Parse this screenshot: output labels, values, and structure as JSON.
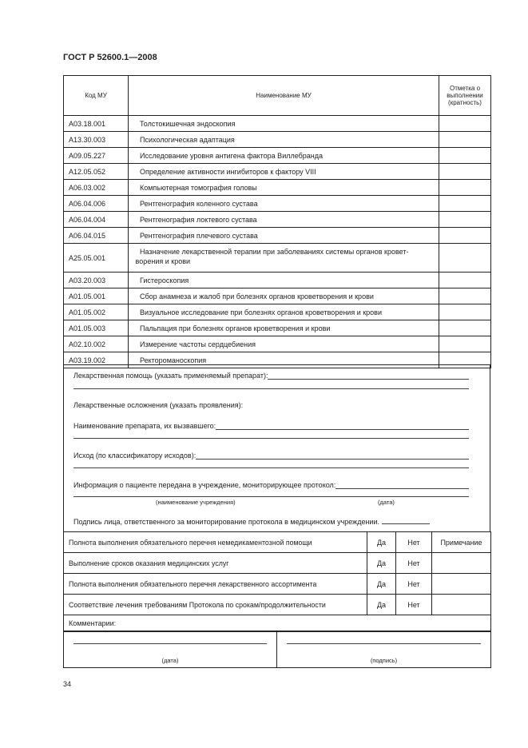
{
  "header": {
    "title": "ГОСТ Р 52600.1—2008"
  },
  "mu_table": {
    "columns": [
      "Код МУ",
      "Наименование МУ",
      "Отметка о выполнении (кратность)"
    ],
    "rows": [
      {
        "code": "A03.18.001",
        "name": "Толстокишечная эндоскопия"
      },
      {
        "code": "A13.30.003",
        "name": "Психологическая адаптация"
      },
      {
        "code": "A09.05.227",
        "name": "Исследование уровня антигена фактора Виллебранда"
      },
      {
        "code": "A12.05.052",
        "name": "Определение активности ингибиторов к фактору VIII"
      },
      {
        "code": "A06.03.002",
        "name": "Компьютерная томография головы"
      },
      {
        "code": "A06.04.006",
        "name": "Рентгенография коленного сустава"
      },
      {
        "code": "A06.04.004",
        "name": "Рентгенография локтевого сустава"
      },
      {
        "code": "A06.04.015",
        "name": "Рентгенография плечевого сустава"
      },
      {
        "code": "A25.05.001",
        "name": "Назначение лекарственной терапии при заболеваниях системы органов кровет- вορения и крови"
      },
      {
        "code": "A03.20.003",
        "name": "Гистероскопия"
      },
      {
        "code": "A01.05.001",
        "name": "Сбор анамнеза и жалоб при болезнях органов кроветворения и крови"
      },
      {
        "code": "A01.05.002",
        "name": "Визуальное исследование при болезнях органов кроветворения и крови"
      },
      {
        "code": "A01.05.003",
        "name": "Пальпация при болезнях органов кроветворения и крови"
      },
      {
        "code": "A02.10.002",
        "name": "Измерение частоты сердцебиения"
      },
      {
        "code": "A03.19.002",
        "name": "Ректороманоскопия"
      }
    ]
  },
  "form": {
    "drug_help": "Лекарственная помощь (указать применяемый препарат):",
    "drug_complications": "Лекарственные осложнения (указать проявления):",
    "drug_name": "Наименование препарата, их вызвавшего:",
    "outcome": "Исход (по классификатору исходов):",
    "info_passed": "Информация о пациенте передана в учреждение, мониторирующее протокол:",
    "institution_caption": "(наименование учреждения)",
    "date_caption": "(дата)",
    "signature_line": "Подпись лица, ответственного за мониторирование протокола в медицинском учреждении."
  },
  "check_table": {
    "note_header": "Примечание",
    "rows": [
      {
        "label": "Полнота выполнения обязательного перечня немедикаментозной помощи",
        "yes": "Да",
        "no": "Нет"
      },
      {
        "label": "Выполнение сроков оказания медицинских услуг",
        "yes": "Да",
        "no": "Нет"
      },
      {
        "label": "Полнота выполнения обязательного перечня лекарственного ассортимента",
        "yes": "Да",
        "no": "Нет"
      },
      {
        "label": "Соответствие лечения требованиям Протокола по срокам/продолжительности",
        "yes": "Да",
        "no": "Нет"
      }
    ],
    "comments": "Комментарии:"
  },
  "signature": {
    "date_caption": "(дата)",
    "signature_caption": "(подпись)"
  },
  "footer": {
    "page_number": "34"
  }
}
